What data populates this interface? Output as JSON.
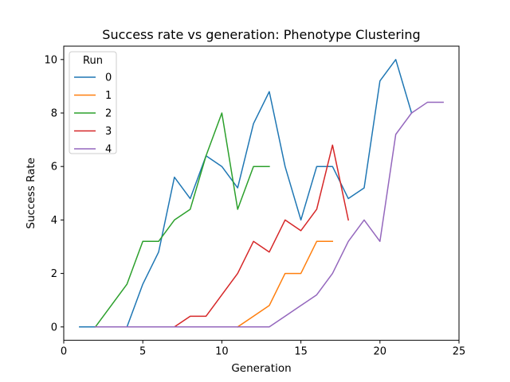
{
  "chart_data": {
    "type": "line",
    "title": "Success rate vs generation: Phenotype Clustering",
    "xlabel": "Generation",
    "ylabel": "Success Rate",
    "xlim": [
      0,
      25
    ],
    "ylim": [
      -0.5,
      10.5
    ],
    "xticks": [
      0,
      5,
      10,
      15,
      20,
      25
    ],
    "yticks": [
      0,
      2,
      4,
      6,
      8,
      10
    ],
    "grid": false,
    "legend": {
      "title": "Run",
      "placement": "top-left"
    },
    "series": [
      {
        "name": "0",
        "color": "#1f77b4",
        "x": [
          1,
          2,
          3,
          4,
          5,
          6,
          7,
          8,
          9,
          10,
          11,
          12,
          13,
          14,
          15,
          16,
          17,
          18,
          19,
          20,
          21,
          22
        ],
        "y": [
          0,
          0,
          0,
          0,
          1.6,
          2.8,
          5.6,
          4.8,
          6.4,
          6.0,
          5.2,
          7.6,
          8.8,
          6.0,
          4.0,
          6.0,
          6.0,
          4.8,
          5.2,
          9.2,
          10.0,
          8.0
        ]
      },
      {
        "name": "1",
        "color": "#ff7f0e",
        "x": [
          11,
          12,
          13,
          14,
          15,
          16,
          17
        ],
        "y": [
          0,
          0.4,
          0.8,
          2.0,
          2.0,
          3.2,
          3.2
        ]
      },
      {
        "name": "2",
        "color": "#2ca02c",
        "x": [
          2,
          3,
          4,
          5,
          6,
          7,
          8,
          9,
          10,
          11,
          12,
          13
        ],
        "y": [
          0,
          0.8,
          1.6,
          3.2,
          3.2,
          4.0,
          4.4,
          6.4,
          8.0,
          4.4,
          6.0,
          6.0
        ]
      },
      {
        "name": "3",
        "color": "#d62728",
        "x": [
          2,
          3,
          4,
          5,
          6,
          7,
          8,
          9,
          10,
          11,
          12,
          13,
          14,
          15,
          16,
          17,
          18
        ],
        "y": [
          0,
          0,
          0,
          0,
          0,
          0,
          0.4,
          0.4,
          1.2,
          2.0,
          3.2,
          2.8,
          4.0,
          3.6,
          4.4,
          6.8,
          4.0
        ]
      },
      {
        "name": "4",
        "color": "#9467bd",
        "x": [
          2,
          3,
          4,
          5,
          6,
          7,
          8,
          9,
          10,
          11,
          12,
          13,
          14,
          15,
          16,
          17,
          18,
          19,
          20,
          21,
          22,
          23,
          24
        ],
        "y": [
          0,
          0,
          0,
          0,
          0,
          0,
          0,
          0,
          0,
          0,
          0,
          0,
          0.4,
          0.8,
          1.2,
          2.0,
          3.2,
          4.0,
          3.2,
          7.2,
          8.0,
          8.4,
          8.4
        ]
      }
    ]
  }
}
